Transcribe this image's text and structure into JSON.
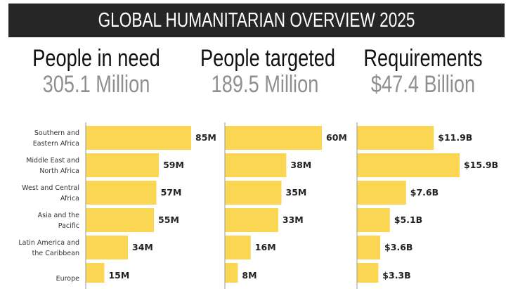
{
  "title": "GLOBAL HUMANITARIAN OVERVIEW 2025",
  "kpis": [
    {
      "label": "People in need",
      "value": "305.1 Million"
    },
    {
      "label": "People targeted",
      "value": "189.5 Million"
    },
    {
      "label": "Requirements",
      "value": "$47.4 Billion"
    }
  ],
  "colors": {
    "bar": "#fbd653",
    "axis": "#999999",
    "banner": "#262626"
  },
  "chart_data": [
    {
      "type": "bar",
      "orientation": "horizontal",
      "title": "People in need",
      "categories": [
        [
          "Southern and",
          "Eastern Africa"
        ],
        [
          "Middle East and",
          "North Africa"
        ],
        [
          "West and Central",
          "Africa"
        ],
        [
          "Asia and the",
          "Pacific"
        ],
        [
          "Latin America and",
          "the Caribbean"
        ],
        [
          "Europe"
        ]
      ],
      "values": [
        85,
        59,
        57,
        55,
        34,
        15
      ],
      "labels": [
        "85M",
        "59M",
        "57M",
        "55M",
        "34M",
        "15M"
      ],
      "unit": "Million"
    },
    {
      "type": "bar",
      "orientation": "horizontal",
      "title": "People targeted",
      "values": [
        60,
        38,
        35,
        33,
        16,
        8
      ],
      "labels": [
        "60M",
        "38M",
        "35M",
        "33M",
        "16M",
        "8M"
      ],
      "unit": "Million"
    },
    {
      "type": "bar",
      "orientation": "horizontal",
      "title": "Requirements",
      "values": [
        11.9,
        15.9,
        7.6,
        5.1,
        3.6,
        3.3
      ],
      "labels": [
        "$11.9B",
        "$15.9B",
        "$7.6B",
        "$5.1B",
        "$3.6B",
        "$3.3B"
      ],
      "unit": "Billion USD"
    }
  ]
}
